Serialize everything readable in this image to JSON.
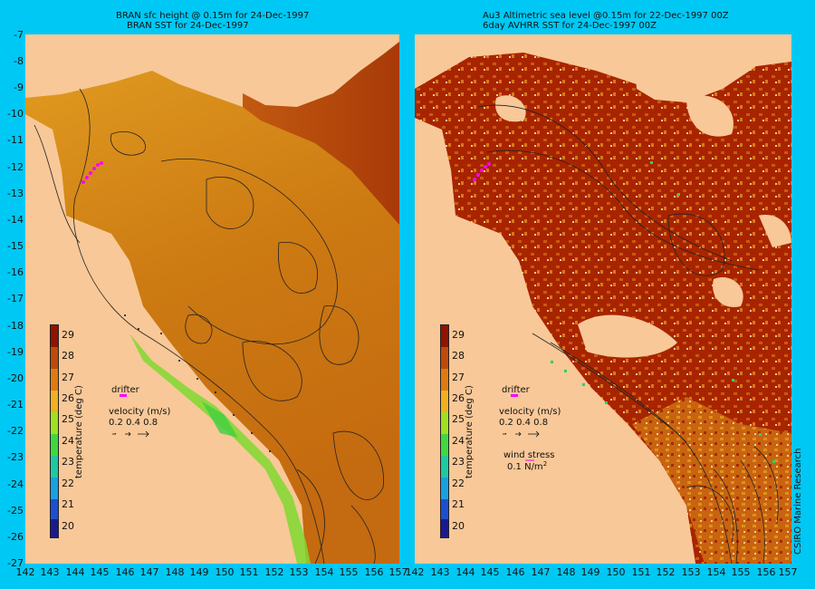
{
  "left_panel": {
    "title_line1": "BRAN sfc height @ 0.15m  for 24-Dec-1997",
    "title_line2": "BRAN SST for 24-Dec-1997"
  },
  "right_panel": {
    "title_line1": "Au3 Altimetric sea level  @0.15m  for 22-Dec-1997 00Z",
    "title_line2": "6day AVHRR SST for 24-Dec-1997 00Z"
  },
  "colorbar": {
    "label": "temperature (deg C)",
    "ticks": [
      "29",
      "28",
      "27",
      "26",
      "25",
      "24",
      "23",
      "22",
      "21",
      "20"
    ],
    "range": [
      19.3,
      29.7
    ],
    "colors": [
      "#1a1a8c",
      "#1e4fd0",
      "#1aa0e0",
      "#20c8a0",
      "#40d840",
      "#a0e020",
      "#e8d800",
      "#f0b020",
      "#e07a10",
      "#c04a08",
      "#901400"
    ]
  },
  "legend": {
    "drifter_label": "drifter",
    "velocity_label": "velocity (m/s)",
    "velocity_values": "0.2 0.4 0.8",
    "wind_stress_label": "wind stress",
    "wind_stress_value": "0.1 N/m",
    "wind_stress_exp": "2",
    "drifter_color": "#ff00ff"
  },
  "axes": {
    "lat_labels": [
      "-7",
      "-8",
      "-9",
      "-10",
      "-11",
      "-12",
      "-13",
      "-14",
      "-15",
      "-16",
      "-17",
      "-18",
      "-19",
      "-20",
      "-21",
      "-22",
      "-23",
      "-24",
      "-25",
      "-26",
      "-27"
    ],
    "lon_labels_left": [
      "142",
      "143",
      "144",
      "145",
      "146",
      "147",
      "148",
      "149",
      "150",
      "151",
      "152",
      "153",
      "154",
      "155",
      "156",
      "157"
    ],
    "lon_labels_right": [
      "142",
      "143",
      "144",
      "145",
      "146",
      "147",
      "148",
      "149",
      "150",
      "151",
      "152",
      "153",
      "154",
      "155",
      "156",
      "157"
    ]
  },
  "credit": "CSIRO Marine Research",
  "colors": {
    "background": "#00c8f4",
    "land": "#f8c898",
    "sst_warm": "#c86a10",
    "sst_hot": "#a82a00",
    "sst_cool": "#58d040"
  }
}
